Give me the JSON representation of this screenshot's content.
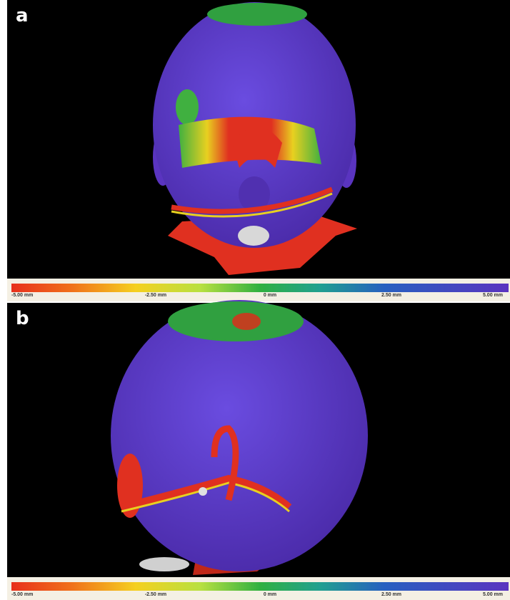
{
  "panels": [
    {
      "label": "a",
      "scale_labels": [
        "-5.00 mm",
        "-2.50 mm",
        "0 mm",
        "2.50 mm",
        "5.00 mm"
      ]
    },
    {
      "label": "b",
      "scale_labels": [
        "-5.00 mm",
        "-2.50 mm",
        "0 mm",
        "2.50 mm",
        "5.00 mm"
      ]
    }
  ]
}
